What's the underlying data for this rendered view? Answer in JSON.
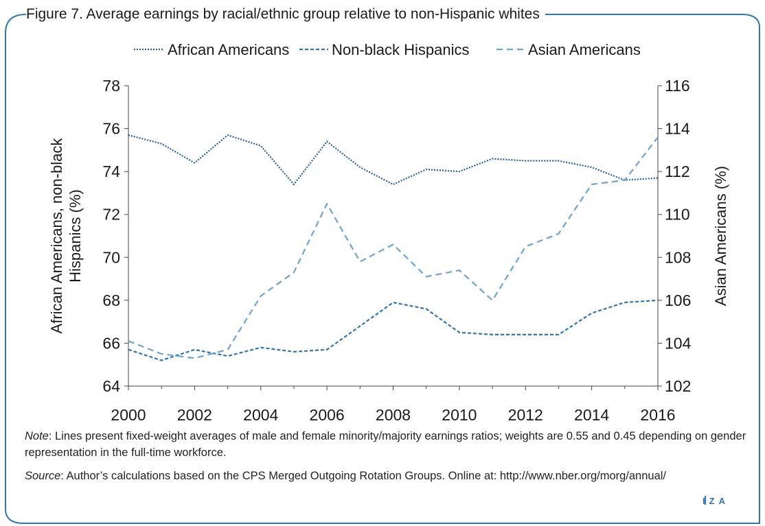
{
  "figure": {
    "title": "Figure 7. Average earnings by racial/ethnic group relative to non-Hispanic whites",
    "note_label": "Note",
    "note_text": ": Lines present fixed-weight averages of male and female minority/majority earnings ratios; weights are 0.55 and 0.45 depending on gender representation in the full-time workforce.",
    "source_label": "Source",
    "source_text": ": Author’s calculations based on the CPS Merged Outgoing Rotation Groups. Online at: http://www.nber.org/morg/annual/",
    "brand": "IZA"
  },
  "chart_data": {
    "type": "line",
    "x": [
      2000,
      2001,
      2002,
      2003,
      2004,
      2005,
      2006,
      2007,
      2008,
      2009,
      2010,
      2011,
      2012,
      2013,
      2014,
      2015,
      2016
    ],
    "xlim": [
      2000,
      2016
    ],
    "xticks": [
      "2000",
      "2002",
      "2004",
      "2006",
      "2008",
      "2010",
      "2012",
      "2014",
      "2016"
    ],
    "ylabel": "African Americans, non-black Hispanics (%)",
    "ylabel_lines": [
      "African Americans, non-black",
      "Hispanics (%)"
    ],
    "ylim": [
      64,
      78
    ],
    "yticks": [
      "64",
      "66",
      "68",
      "70",
      "72",
      "74",
      "76",
      "78"
    ],
    "y2label": "Asian Americans (%)",
    "y2lim": [
      102,
      116
    ],
    "y2ticks": [
      "102",
      "104",
      "106",
      "108",
      "110",
      "112",
      "114",
      "116"
    ],
    "legend_position": "top-center",
    "grid": false,
    "series": [
      {
        "name": "African Americans",
        "axis": "left",
        "style": "dotted",
        "color": "#1f5fa3",
        "values": [
          75.7,
          75.3,
          74.4,
          75.7,
          75.2,
          73.4,
          75.4,
          74.2,
          73.4,
          74.1,
          74.0,
          74.6,
          74.5,
          74.5,
          74.2,
          73.6,
          73.7
        ]
      },
      {
        "name": "Non-black Hispanics",
        "axis": "left",
        "style": "dashed",
        "color": "#2d74b7",
        "values": [
          65.7,
          65.2,
          65.7,
          65.4,
          65.8,
          65.6,
          65.7,
          66.8,
          67.9,
          67.6,
          66.5,
          66.4,
          66.4,
          66.4,
          67.4,
          67.9,
          68.0
        ]
      },
      {
        "name": "Asian Americans",
        "axis": "right",
        "style": "longdash",
        "color": "#6aa3d6",
        "values": [
          104.1,
          103.5,
          103.3,
          103.7,
          106.2,
          107.3,
          110.5,
          107.8,
          108.6,
          107.1,
          107.4,
          106.0,
          108.5,
          109.1,
          111.4,
          111.6,
          113.6
        ]
      }
    ]
  }
}
